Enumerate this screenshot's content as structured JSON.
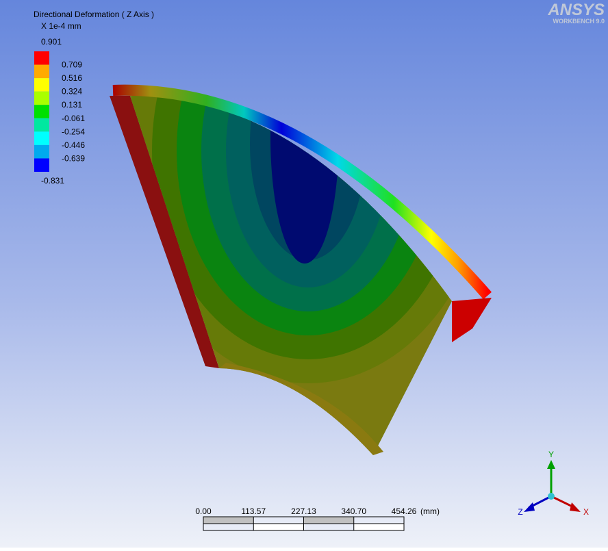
{
  "legend": {
    "title": "Directional Deformation ( Z Axis )",
    "unit": "X 1e-4 mm",
    "levels": [
      "0.901",
      "0.709",
      "0.516",
      "0.324",
      "0.131",
      "-0.061",
      "-0.254",
      "-0.446",
      "-0.639",
      "-0.831"
    ],
    "colors": [
      "#ff0000",
      "#ffaa00",
      "#ffff00",
      "#aaff00",
      "#00e000",
      "#00e8a0",
      "#00ffff",
      "#00aaee",
      "#0000ff"
    ]
  },
  "logo": {
    "brand": "ANSYS",
    "product": "WORKBENCH 9.0"
  },
  "scale": {
    "labels": [
      "0.00",
      "113.57",
      "227.13",
      "340.70",
      "454.26"
    ],
    "unit": "(mm)"
  },
  "triad": {
    "y": "Y",
    "z": "Z",
    "x": "X"
  }
}
